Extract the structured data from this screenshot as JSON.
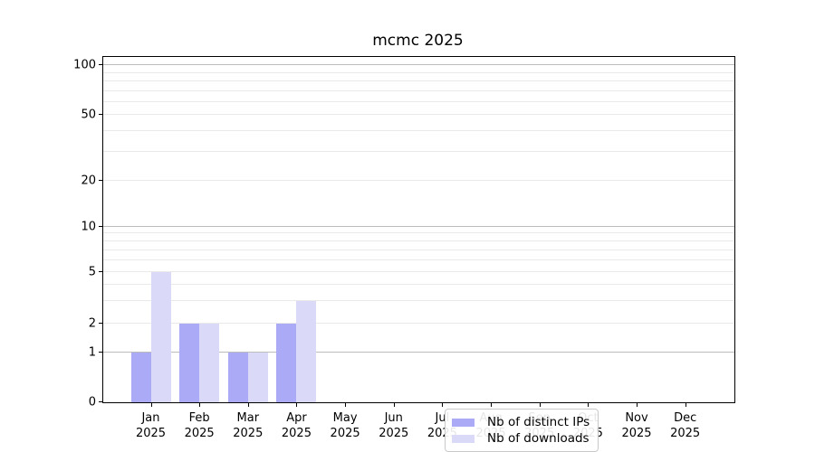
{
  "title": "mcmc 2025",
  "chart_data": {
    "type": "bar",
    "title": "mcmc 2025",
    "categories": [
      "Jan",
      "Feb",
      "Mar",
      "Apr",
      "May",
      "Jun",
      "Jul",
      "Aug",
      "Sep",
      "Oct",
      "Nov",
      "Dec"
    ],
    "x_tick_year": "2025",
    "series": [
      {
        "name": "Nb of distinct IPs",
        "color": "#aaaaf6",
        "values": [
          1,
          2,
          1,
          2,
          0,
          0,
          0,
          0,
          0,
          0,
          0,
          0
        ]
      },
      {
        "name": "Nb of downloads",
        "color": "#dadaf8",
        "values": [
          5,
          2,
          1,
          3,
          0,
          0,
          0,
          0,
          0,
          0,
          0,
          0
        ]
      }
    ],
    "ylabel": "",
    "xlabel": "",
    "y_axis_scale": "symlog",
    "y_tick_values": [
      0,
      1,
      2,
      5,
      10,
      20,
      50,
      100
    ],
    "y_major_gridlines": [
      1,
      10,
      100
    ],
    "y_minor_gridlines": [
      2,
      3,
      4,
      5,
      6,
      7,
      8,
      9,
      20,
      30,
      40,
      50,
      60,
      70,
      80,
      90
    ],
    "ylim": [
      0,
      120
    ],
    "grid": true,
    "legend_position": "lower center"
  },
  "legend": {
    "entries": [
      {
        "label": "Nb of distinct IPs",
        "color": "#aaaaf6"
      },
      {
        "label": "Nb of downloads",
        "color": "#dadaf8"
      }
    ]
  }
}
